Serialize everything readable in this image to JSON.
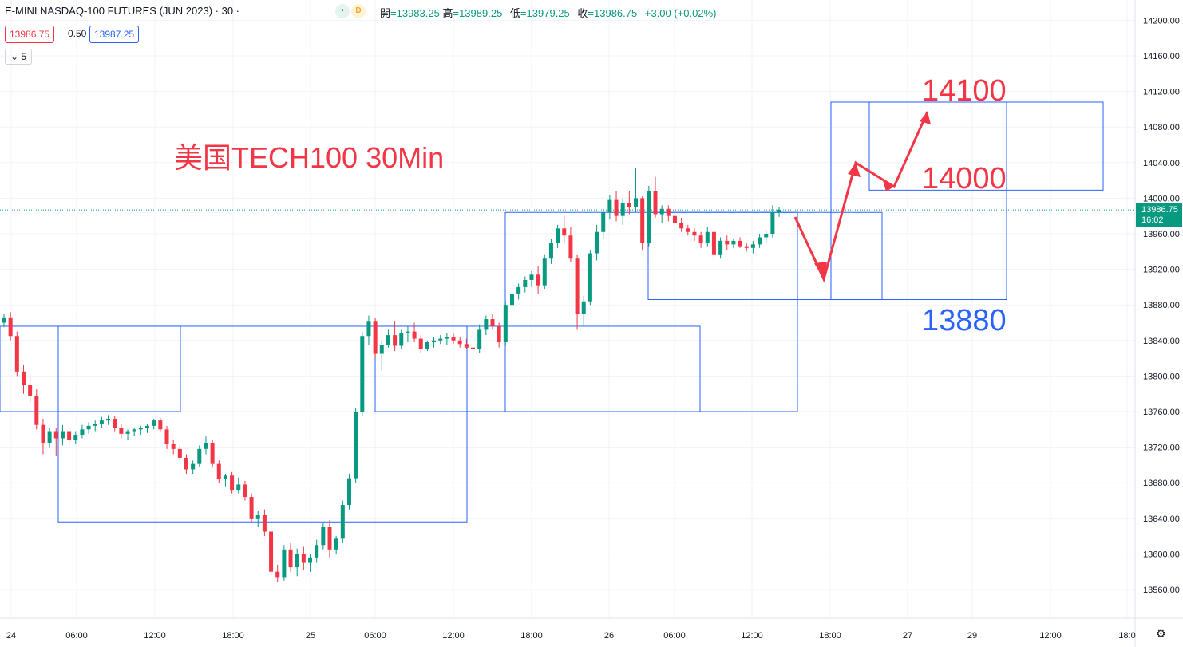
{
  "header": {
    "symbol": "E-MINI NASDAQ-100 FUTURES (JUN 2023) · 30 ·",
    "badge_dot": "•",
    "badge_d": "D",
    "open_label": "開",
    "open": "=13983.25",
    "high_label": "高",
    "high": "=13989.25",
    "low_label": "低",
    "low": "=13979.25",
    "close_label": "收",
    "close": "=13986.75",
    "change": "+3.00 (+0.02%)"
  },
  "quote": {
    "sell": "13986.75",
    "spread": "0.50",
    "buy": "13987.25"
  },
  "indicator_toggle": "5",
  "settings_icon": "⚙",
  "colors": {
    "up": "#089981",
    "down": "#f23645",
    "box": "#2962ff",
    "annot_red": "#f23645",
    "annot_blue": "#2962ff"
  },
  "chart_data": {
    "type": "candlestick",
    "title": "",
    "y_axis": {
      "ticks": [
        13560,
        13600,
        13640,
        13680,
        13720,
        13760,
        13800,
        13840,
        13880,
        13920,
        13960,
        14000,
        14040,
        14080,
        14120,
        14160,
        14200
      ],
      "range": [
        13546,
        14218
      ]
    },
    "x_axis": {
      "labels": [
        "24",
        "06:00",
        "12:00",
        "18:00",
        "25",
        "06:00",
        "12:00",
        "18:00",
        "26",
        "06:00",
        "12:00",
        "18:00",
        "27",
        "29",
        "12:00",
        "18:0"
      ]
    },
    "last_price": {
      "value": 13986.75,
      "label": "13986.75",
      "countdown": "16:02"
    },
    "candles": [
      [
        13860,
        13870,
        13855,
        13866
      ],
      [
        13866,
        13872,
        13840,
        13845
      ],
      [
        13845,
        13850,
        13800,
        13805
      ],
      [
        13805,
        13812,
        13780,
        13790
      ],
      [
        13790,
        13800,
        13770,
        13778
      ],
      [
        13778,
        13785,
        13740,
        13745
      ],
      [
        13745,
        13752,
        13712,
        13725
      ],
      [
        13725,
        13742,
        13720,
        13738
      ],
      [
        13738,
        13742,
        13710,
        13730
      ],
      [
        13730,
        13745,
        13722,
        13738
      ],
      [
        13738,
        13742,
        13722,
        13728
      ],
      [
        13728,
        13738,
        13724,
        13734
      ],
      [
        13734,
        13745,
        13730,
        13740
      ],
      [
        13740,
        13748,
        13735,
        13744
      ],
      [
        13744,
        13750,
        13738,
        13746
      ],
      [
        13746,
        13754,
        13742,
        13750
      ],
      [
        13750,
        13756,
        13745,
        13752
      ],
      [
        13752,
        13755,
        13738,
        13742
      ],
      [
        13742,
        13746,
        13730,
        13735
      ],
      [
        13735,
        13740,
        13728,
        13738
      ],
      [
        13738,
        13742,
        13733,
        13740
      ],
      [
        13740,
        13744,
        13734,
        13742
      ],
      [
        13742,
        13746,
        13736,
        13744
      ],
      [
        13744,
        13752,
        13740,
        13750
      ],
      [
        13750,
        13753,
        13738,
        13740
      ],
      [
        13740,
        13744,
        13718,
        13724
      ],
      [
        13724,
        13728,
        13712,
        13718
      ],
      [
        13718,
        13722,
        13705,
        13708
      ],
      [
        13708,
        13712,
        13690,
        13695
      ],
      [
        13695,
        13705,
        13690,
        13702
      ],
      [
        13702,
        13722,
        13698,
        13718
      ],
      [
        13718,
        13732,
        13712,
        13725
      ],
      [
        13725,
        13728,
        13698,
        13702
      ],
      [
        13702,
        13705,
        13680,
        13684
      ],
      [
        13684,
        13690,
        13676,
        13688
      ],
      [
        13688,
        13692,
        13668,
        13672
      ],
      [
        13672,
        13686,
        13668,
        13678
      ],
      [
        13678,
        13682,
        13660,
        13664
      ],
      [
        13664,
        13668,
        13636,
        13640
      ],
      [
        13640,
        13648,
        13630,
        13644
      ],
      [
        13644,
        13650,
        13620,
        13625
      ],
      [
        13625,
        13632,
        13575,
        13580
      ],
      [
        13580,
        13588,
        13568,
        13574
      ],
      [
        13574,
        13610,
        13570,
        13605
      ],
      [
        13605,
        13612,
        13580,
        13585
      ],
      [
        13585,
        13606,
        13575,
        13600
      ],
      [
        13600,
        13608,
        13582,
        13590
      ],
      [
        13590,
        13600,
        13580,
        13596
      ],
      [
        13596,
        13616,
        13590,
        13610
      ],
      [
        13610,
        13635,
        13605,
        13630
      ],
      [
        13630,
        13638,
        13595,
        13605
      ],
      [
        13605,
        13620,
        13600,
        13618
      ],
      [
        13618,
        13660,
        13612,
        13655
      ],
      [
        13655,
        13690,
        13650,
        13685
      ],
      [
        13685,
        13764,
        13680,
        13760
      ],
      [
        13760,
        13850,
        13755,
        13845
      ],
      [
        13845,
        13868,
        13835,
        13862
      ],
      [
        13862,
        13865,
        13820,
        13825
      ],
      [
        13825,
        13840,
        13806,
        13835
      ],
      [
        13835,
        13852,
        13832,
        13846
      ],
      [
        13846,
        13862,
        13828,
        13834
      ],
      [
        13834,
        13852,
        13830,
        13848
      ],
      [
        13848,
        13856,
        13838,
        13850
      ],
      [
        13850,
        13860,
        13838,
        13842
      ],
      [
        13842,
        13846,
        13826,
        13830
      ],
      [
        13830,
        13840,
        13828,
        13838
      ],
      [
        13838,
        13844,
        13832,
        13840
      ],
      [
        13840,
        13846,
        13836,
        13842
      ],
      [
        13842,
        13848,
        13835,
        13844
      ],
      [
        13844,
        13848,
        13836,
        13840
      ],
      [
        13840,
        13844,
        13832,
        13836
      ],
      [
        13836,
        13842,
        13830,
        13832
      ],
      [
        13832,
        13836,
        13826,
        13830
      ],
      [
        13830,
        13858,
        13826,
        13852
      ],
      [
        13852,
        13868,
        13846,
        13864
      ],
      [
        13864,
        13870,
        13852,
        13856
      ],
      [
        13856,
        13860,
        13832,
        13838
      ],
      [
        13838,
        13884,
        13834,
        13880
      ],
      [
        13880,
        13896,
        13874,
        13892
      ],
      [
        13892,
        13904,
        13886,
        13900
      ],
      [
        13900,
        13912,
        13894,
        13908
      ],
      [
        13908,
        13918,
        13900,
        13914
      ],
      [
        13914,
        13924,
        13892,
        13902
      ],
      [
        13902,
        13936,
        13898,
        13932
      ],
      [
        13932,
        13954,
        13926,
        13950
      ],
      [
        13950,
        13970,
        13944,
        13966
      ],
      [
        13966,
        13980,
        13950,
        13958
      ],
      [
        13958,
        13968,
        13928,
        13932
      ],
      [
        13932,
        13936,
        13852,
        13870
      ],
      [
        13870,
        13890,
        13856,
        13884
      ],
      [
        13884,
        13942,
        13880,
        13938
      ],
      [
        13938,
        13970,
        13930,
        13962
      ],
      [
        13962,
        13988,
        13955,
        13984
      ],
      [
        13984,
        14004,
        13976,
        13998
      ],
      [
        13998,
        14008,
        13974,
        13980
      ],
      [
        13980,
        14000,
        13970,
        13995
      ],
      [
        13995,
        14008,
        13982,
        13990
      ],
      [
        13990,
        14034,
        13984,
        14000
      ],
      [
        14000,
        14002,
        13942,
        13950
      ],
      [
        13950,
        14014,
        13946,
        14008
      ],
      [
        14008,
        14024,
        13978,
        13982
      ],
      [
        13982,
        13992,
        13972,
        13988
      ],
      [
        13988,
        13992,
        13974,
        13980
      ],
      [
        13980,
        13988,
        13968,
        13972
      ],
      [
        13972,
        13978,
        13962,
        13966
      ],
      [
        13966,
        13970,
        13958,
        13962
      ],
      [
        13962,
        13966,
        13952,
        13958
      ],
      [
        13958,
        13962,
        13944,
        13950
      ],
      [
        13950,
        13968,
        13946,
        13962
      ],
      [
        13962,
        13966,
        13930,
        13936
      ],
      [
        13936,
        13956,
        13932,
        13952
      ],
      [
        13952,
        13958,
        13942,
        13948
      ],
      [
        13948,
        13954,
        13944,
        13952
      ],
      [
        13952,
        13956,
        13944,
        13946
      ],
      [
        13946,
        13950,
        13940,
        13944
      ],
      [
        13944,
        13952,
        13938,
        13948
      ],
      [
        13948,
        13960,
        13944,
        13956
      ],
      [
        13956,
        13964,
        13950,
        13960
      ],
      [
        13960,
        13992,
        13956,
        13984
      ],
      [
        13984,
        13990,
        13979,
        13987
      ]
    ],
    "boxes": [
      {
        "x0": 0,
        "x1": 226,
        "top": 13856,
        "bottom": 13760
      },
      {
        "x0": 73,
        "x1": 585,
        "top": 13856,
        "bottom": 13636
      },
      {
        "x0": 470,
        "x1": 877,
        "top": 13856,
        "bottom": 13760
      },
      {
        "x0": 633,
        "x1": 999,
        "top": 13984,
        "bottom": 13760
      },
      {
        "x0": 812,
        "x1": 1105,
        "top": 13984,
        "bottom": 13886
      },
      {
        "x0": 1041,
        "x1": 1261,
        "top": 14108,
        "bottom": 13886
      },
      {
        "x0": 1089,
        "x1": 1382,
        "top": 14108,
        "bottom": 14009
      }
    ],
    "annotations": {
      "title": "美国TECH100 30Min",
      "target_high": "14100",
      "target_mid": "14000",
      "target_low": "13880"
    }
  }
}
